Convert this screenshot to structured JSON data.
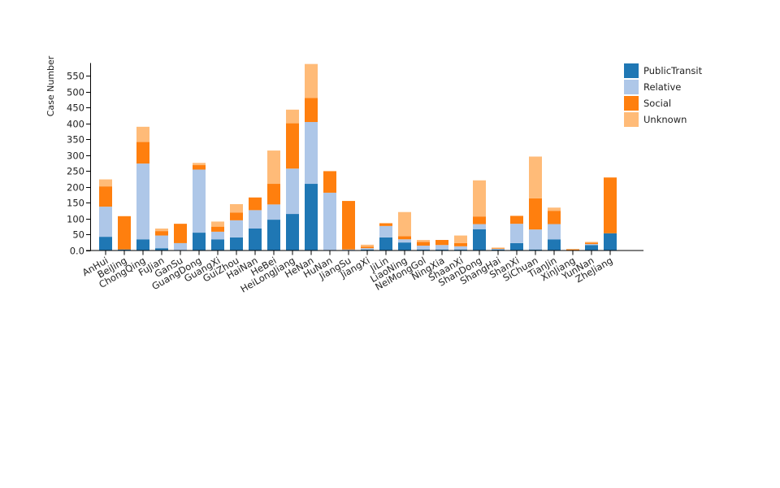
{
  "chart_data": {
    "type": "bar",
    "stacked": true,
    "ylabel": "Case Number",
    "xlabel": "",
    "ylim": [
      0,
      590
    ],
    "y_ticks": [
      0.0,
      50,
      100,
      150,
      200,
      250,
      300,
      350,
      400,
      450,
      500,
      550
    ],
    "y_tick_labels": [
      "0.0",
      "50",
      "100",
      "150",
      "200",
      "250",
      "300",
      "350",
      "400",
      "450",
      "500",
      "550"
    ],
    "grid": false,
    "legend_position": "top-right",
    "categories": [
      "AnHui",
      "BeiJing",
      "ChongQing",
      "FuJian",
      "GanSu",
      "GuangDong",
      "GuangXi",
      "GuiZhou",
      "HaiNan",
      "HeBei",
      "HeiLongJiang",
      "HeNan",
      "HuNan",
      "JiangSu",
      "JiangXi",
      "JiLin",
      "LiaoNing",
      "NeiMongGol",
      "NingXia",
      "ShaanXi",
      "ShanDong",
      "ShangHai",
      "ShanXi",
      "SiChuan",
      "TianJin",
      "XinJiang",
      "YunNan",
      "ZheJiang"
    ],
    "series": [
      {
        "name": "PublicTransit",
        "color": "#1f77b4",
        "values": [
          42,
          2,
          34,
          6,
          0,
          55,
          34,
          40,
          68,
          96,
          114,
          209,
          0,
          0,
          2,
          40,
          24,
          2,
          2,
          2,
          66,
          2,
          22,
          2,
          34,
          0,
          16,
          53
        ]
      },
      {
        "name": "Relative",
        "color": "#aec7e8",
        "values": [
          95,
          0,
          239,
          40,
          22,
          199,
          24,
          54,
          58,
          48,
          143,
          195,
          181,
          2,
          4,
          36,
          10,
          12,
          14,
          10,
          16,
          2,
          61,
          63,
          48,
          0,
          3,
          0
        ]
      },
      {
        "name": "Social",
        "color": "#ff7f0e",
        "values": [
          64,
          105,
          68,
          14,
          61,
          14,
          16,
          24,
          40,
          65,
          143,
          76,
          68,
          153,
          5,
          8,
          10,
          12,
          16,
          10,
          24,
          2,
          25,
          98,
          42,
          2,
          4,
          176
        ]
      },
      {
        "name": "Unknown",
        "color": "#ffbb78",
        "values": [
          22,
          0,
          48,
          8,
          0,
          7,
          16,
          27,
          0,
          105,
          43,
          107,
          0,
          0,
          6,
          2,
          76,
          6,
          0,
          24,
          114,
          2,
          0,
          132,
          10,
          2,
          3,
          0
        ]
      }
    ]
  }
}
